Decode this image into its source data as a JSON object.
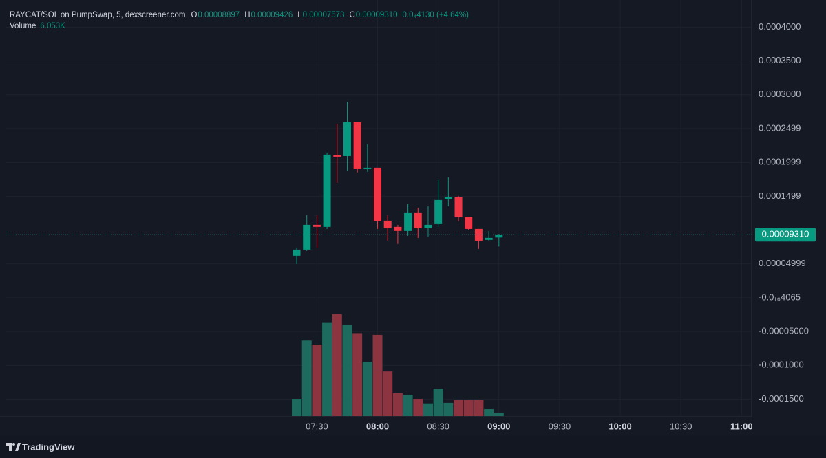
{
  "chart_data": {
    "type": "candlestick",
    "title": "RAYCAT/SOL on PumpSwap, 5, dexscreener.com",
    "legend": {
      "o": "O",
      "o_value": "0.00008897",
      "h": "H",
      "h_value": "0.00009426",
      "l": "L",
      "l_value": "0.00007573",
      "c": "C",
      "c_value": "0.00009310",
      "change": "0.0₄4130 (+4.64%)",
      "volume": "Volume",
      "volume_value": "6.053K"
    },
    "x": [
      "07:20",
      "07:25",
      "07:30",
      "07:35",
      "07:40",
      "07:45",
      "07:50",
      "07:55",
      "08:00",
      "08:05",
      "08:10",
      "08:15",
      "08:20",
      "08:25",
      "08:30",
      "08:35",
      "08:40",
      "08:45",
      "08:50",
      "08:55",
      "09:00"
    ],
    "open": [
      6.2e-05,
      7.11e-05,
      0.0001077,
      0.0001047,
      0.0002104,
      0.0002093,
      0.0002591,
      0.00019,
      0.0001921,
      0.0001138,
      0.0001047,
      9.86e-05,
      0.000125,
      0.0001026,
      0.0001087,
      0.0001453,
      0.0001484,
      0.0001189,
      0.0001016,
      8.54e-05,
      8.897e-05
    ],
    "high": [
      7.42e-05,
      0.000122,
      0.000122,
      0.0002144,
      0.0002571,
      0.0002896,
      0.0002591,
      0.0002266,
      0.0001921,
      0.000122,
      0.0001077,
      0.0001382,
      0.0001331,
      0.0001352,
      0.0001738,
      0.0001778,
      0.0001504,
      0.0001189,
      0.0001016,
      9.86e-05,
      9.426e-05
    ],
    "low": [
      4.98e-05,
      6.91e-05,
      7.42e-05,
      0.0001016,
      0.0001697,
      0.000188,
      0.000185,
      0.000186,
      0.0001016,
      8.43e-05,
      7.93e-05,
      9.15e-05,
      8.84e-05,
      9.04e-05,
      0.0001047,
      0.0001352,
      0.0001128,
      9.96e-05,
      7.22e-05,
      8.43e-05,
      7.573e-05
    ],
    "close": [
      7.11e-05,
      0.0001077,
      0.0001047,
      0.0002114,
      0.0002083,
      0.0002591,
      0.00019,
      0.0001921,
      0.0001128,
      0.0001026,
      9.86e-05,
      0.000125,
      0.0001026,
      0.0001077,
      0.0001443,
      0.0001484,
      0.0001189,
      0.0001016,
      8.43e-05,
      8.84e-05,
      9.31e-05
    ],
    "volume": [
      30000,
      132000,
      125000,
      164000,
      178000,
      160000,
      145000,
      95000,
      142000,
      78000,
      40000,
      37000,
      30000,
      22000,
      48000,
      23000,
      28000,
      28000,
      28000,
      12000,
      6053
    ],
    "up_color": "#089981",
    "down_color": "#f23645",
    "volume_up_color": "#1d6b5e",
    "volume_down_color": "#8c3540",
    "xlim": [
      "04:56",
      "11:05"
    ],
    "xticks": [
      "07:30",
      "08:00",
      "08:30",
      "09:00",
      "09:30",
      "10:00",
      "10:30",
      "11:00"
    ],
    "ylim": [
      -0.000176,
      0.00044
    ],
    "yticks": [
      {
        "value": 0.0004,
        "label": "0.0004000"
      },
      {
        "value": 0.00035,
        "label": "0.0003500"
      },
      {
        "value": 0.0003,
        "label": "0.0003000"
      },
      {
        "value": 0.0002499,
        "label": "0.0002499"
      },
      {
        "value": 0.0001999,
        "label": "0.0001999"
      },
      {
        "value": 0.0001499,
        "label": "0.0001499"
      },
      {
        "value": 4.999e-05,
        "label": "0.00004999"
      },
      {
        "value": -4.065e-17,
        "label": "-0.0₁₆4065"
      },
      {
        "value": -5e-05,
        "label": "-0.00005000"
      },
      {
        "value": -0.0001,
        "label": "-0.0001000"
      },
      {
        "value": -0.00015,
        "label": "-0.0001500"
      }
    ],
    "last_price": {
      "value": 9.31e-05,
      "label": "0.00009310"
    },
    "grid": true,
    "footer": "TradingView"
  }
}
